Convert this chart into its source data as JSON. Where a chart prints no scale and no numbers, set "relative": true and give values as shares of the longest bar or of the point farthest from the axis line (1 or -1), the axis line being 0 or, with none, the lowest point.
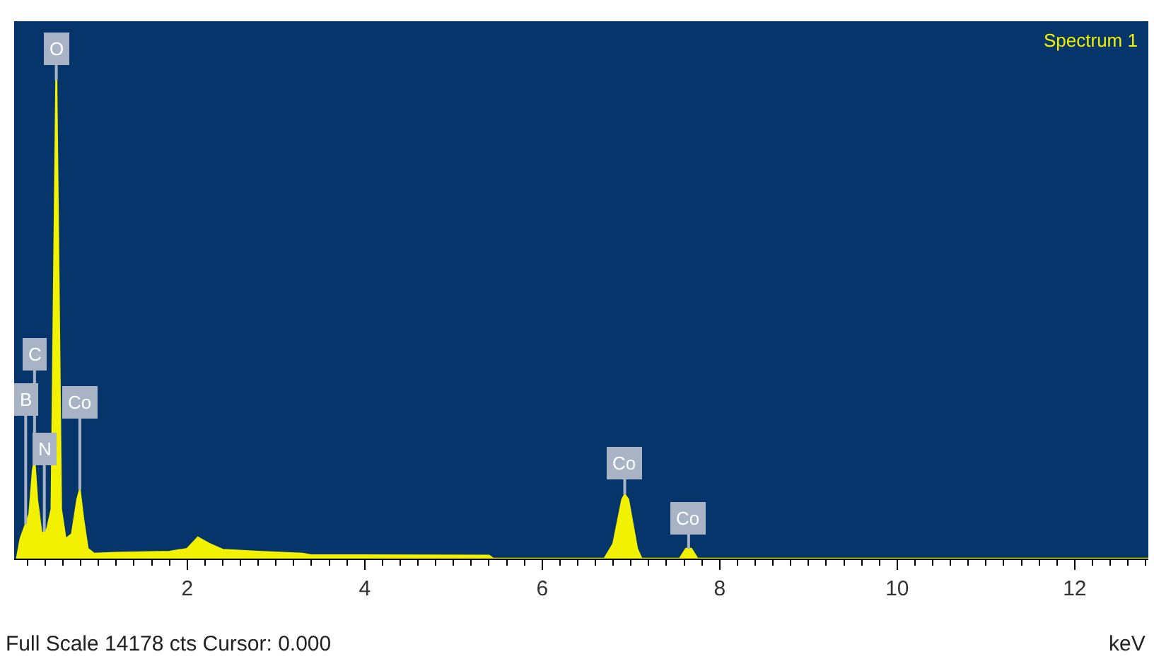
{
  "chart_data": {
    "type": "area",
    "relative": true,
    "xlabel": "keV",
    "xlim": [
      0.05,
      12.83
    ],
    "xticks": [
      2,
      4,
      6,
      8,
      10,
      12
    ],
    "grid": false,
    "legend": false,
    "series": [
      {
        "name": "Spectrum 1",
        "color": "#f2f200",
        "x": [
          0.08,
          0.12,
          0.18,
          0.22,
          0.26,
          0.28,
          0.31,
          0.36,
          0.39,
          0.42,
          0.47,
          0.5,
          0.525,
          0.55,
          0.58,
          0.63,
          0.7,
          0.76,
          0.79,
          0.83,
          0.88,
          0.95,
          1.2,
          1.8,
          2.0,
          2.12,
          2.25,
          2.4,
          2.8,
          3.3,
          3.4,
          5.4,
          5.45,
          6.7,
          6.8,
          6.9,
          6.93,
          6.97,
          7.07,
          7.12,
          7.55,
          7.62,
          7.68,
          7.75,
          12.83
        ],
        "values": [
          0,
          0.04,
          0.07,
          0.09,
          0.18,
          0.2,
          0.12,
          0.05,
          0.055,
          0.06,
          0.1,
          0.6,
          1,
          0.6,
          0.1,
          0.04,
          0.05,
          0.12,
          0.14,
          0.08,
          0.02,
          0.01,
          0.012,
          0.014,
          0.02,
          0.043,
          0.03,
          0.018,
          0.014,
          0.01,
          0.007,
          0.006,
          0,
          0,
          0.03,
          0.12,
          0.13,
          0.12,
          0.02,
          0,
          0,
          0.02,
          0.02,
          0,
          0
        ]
      }
    ],
    "annotations": [
      {
        "text": "O",
        "x": 0.525,
        "y": 0.97
      },
      {
        "text": "C",
        "x": 0.28,
        "y": 0.2
      },
      {
        "text": "B",
        "x": 0.18,
        "y": 0.07
      },
      {
        "text": "Co",
        "x": 0.79,
        "y": 0.14
      },
      {
        "text": "N",
        "x": 0.39,
        "y": 0.055
      },
      {
        "text": "Co",
        "x": 6.93,
        "y": 0.13
      },
      {
        "text": "Co",
        "x": 7.65,
        "y": 0.02
      },
      "Full Scale 14178 cts Cursor: 0.000"
    ]
  }
}
